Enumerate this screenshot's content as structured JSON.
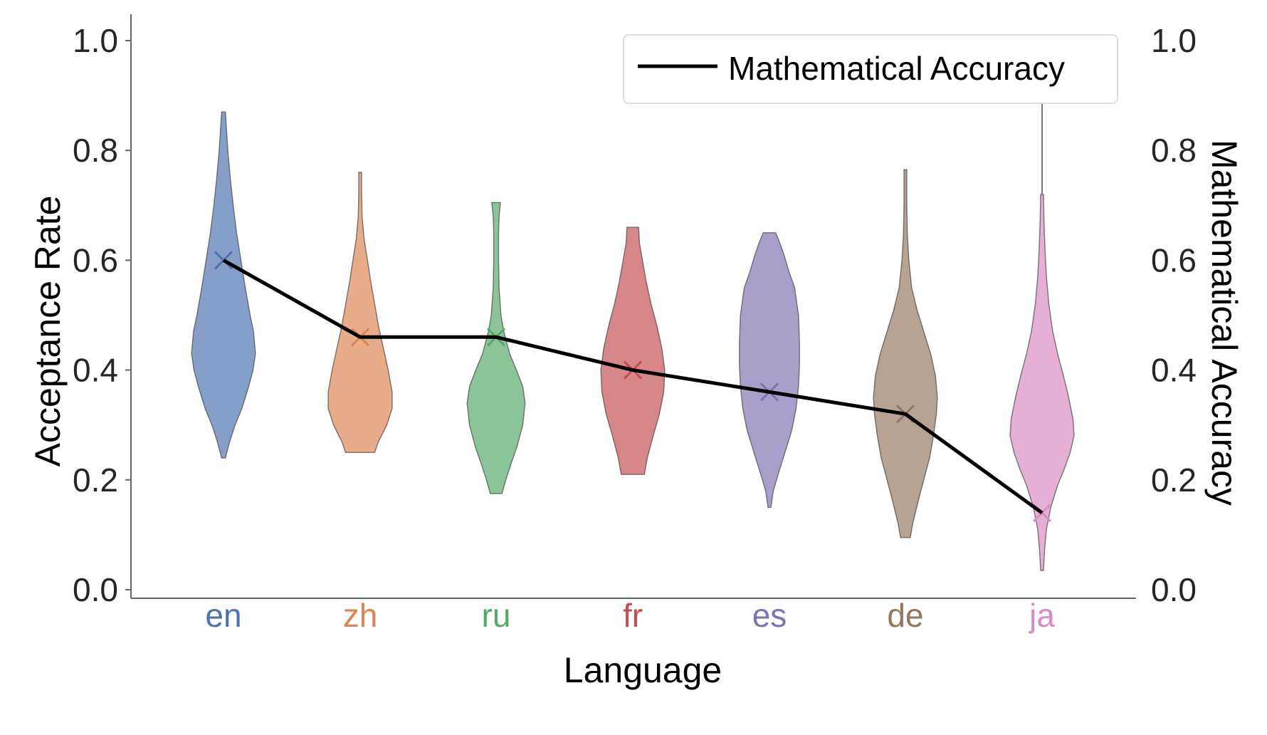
{
  "chart_data": {
    "type": "violin",
    "xlabel": "Language",
    "ylabel": "Acceptance Rate",
    "y2label": "Mathematical Accuracy",
    "categories": [
      "en",
      "zh",
      "ru",
      "fr",
      "es",
      "de",
      "ja"
    ],
    "category_colors": [
      "#4c72b0",
      "#dd8452",
      "#55a868",
      "#c44e52",
      "#8172b3",
      "#937860",
      "#da8bc3"
    ],
    "ylim": [
      0,
      1.0
    ],
    "y2lim": [
      0,
      1.0
    ],
    "yticks": [
      "0.0",
      "0.2",
      "0.4",
      "0.6",
      "0.8",
      "1.0"
    ],
    "y2ticks": [
      "0.0",
      "0.2",
      "0.4",
      "0.6",
      "0.8",
      "1.0"
    ],
    "grid": false,
    "legend": {
      "position": "top-right",
      "entries": [
        "Mathematical Accuracy"
      ]
    },
    "violins": [
      {
        "category": "en",
        "min": 0.24,
        "max": 0.87,
        "mean": 0.6,
        "profile": [
          [
            0.24,
            0.04
          ],
          [
            0.27,
            0.13
          ],
          [
            0.3,
            0.24
          ],
          [
            0.33,
            0.38
          ],
          [
            0.37,
            0.52
          ],
          [
            0.4,
            0.61
          ],
          [
            0.43,
            0.66
          ],
          [
            0.47,
            0.62
          ],
          [
            0.5,
            0.55
          ],
          [
            0.55,
            0.45
          ],
          [
            0.6,
            0.36
          ],
          [
            0.65,
            0.27
          ],
          [
            0.7,
            0.2
          ],
          [
            0.75,
            0.14
          ],
          [
            0.8,
            0.09
          ],
          [
            0.84,
            0.06
          ],
          [
            0.87,
            0.04
          ]
        ]
      },
      {
        "category": "zh",
        "min": 0.25,
        "max": 0.76,
        "mean": 0.46,
        "profile": [
          [
            0.25,
            0.3
          ],
          [
            0.27,
            0.38
          ],
          [
            0.3,
            0.55
          ],
          [
            0.33,
            0.66
          ],
          [
            0.36,
            0.66
          ],
          [
            0.4,
            0.58
          ],
          [
            0.44,
            0.48
          ],
          [
            0.48,
            0.38
          ],
          [
            0.52,
            0.3
          ],
          [
            0.56,
            0.22
          ],
          [
            0.6,
            0.15
          ],
          [
            0.64,
            0.08
          ],
          [
            0.68,
            0.04
          ],
          [
            0.72,
            0.03
          ],
          [
            0.76,
            0.03
          ]
        ]
      },
      {
        "category": "ru",
        "min": 0.175,
        "max": 0.705,
        "mean": 0.46,
        "profile": [
          [
            0.175,
            0.12
          ],
          [
            0.2,
            0.2
          ],
          [
            0.23,
            0.31
          ],
          [
            0.26,
            0.43
          ],
          [
            0.3,
            0.55
          ],
          [
            0.34,
            0.6
          ],
          [
            0.37,
            0.55
          ],
          [
            0.4,
            0.42
          ],
          [
            0.43,
            0.28
          ],
          [
            0.47,
            0.16
          ],
          [
            0.5,
            0.1
          ],
          [
            0.55,
            0.06
          ],
          [
            0.6,
            0.05
          ],
          [
            0.65,
            0.05
          ],
          [
            0.68,
            0.06
          ],
          [
            0.705,
            0.09
          ]
        ]
      },
      {
        "category": "fr",
        "min": 0.21,
        "max": 0.66,
        "mean": 0.4,
        "profile": [
          [
            0.21,
            0.24
          ],
          [
            0.24,
            0.3
          ],
          [
            0.28,
            0.42
          ],
          [
            0.32,
            0.55
          ],
          [
            0.36,
            0.64
          ],
          [
            0.4,
            0.66
          ],
          [
            0.44,
            0.6
          ],
          [
            0.48,
            0.5
          ],
          [
            0.52,
            0.38
          ],
          [
            0.56,
            0.28
          ],
          [
            0.6,
            0.2
          ],
          [
            0.63,
            0.14
          ],
          [
            0.66,
            0.12
          ]
        ]
      },
      {
        "category": "es",
        "min": 0.15,
        "max": 0.65,
        "mean": 0.36,
        "profile": [
          [
            0.15,
            0.03
          ],
          [
            0.18,
            0.08
          ],
          [
            0.21,
            0.18
          ],
          [
            0.25,
            0.32
          ],
          [
            0.29,
            0.46
          ],
          [
            0.33,
            0.55
          ],
          [
            0.37,
            0.6
          ],
          [
            0.41,
            0.62
          ],
          [
            0.45,
            0.62
          ],
          [
            0.5,
            0.6
          ],
          [
            0.55,
            0.52
          ],
          [
            0.58,
            0.4
          ],
          [
            0.61,
            0.3
          ],
          [
            0.63,
            0.22
          ],
          [
            0.65,
            0.13
          ]
        ]
      },
      {
        "category": "de",
        "min": 0.095,
        "max": 0.765,
        "mean": 0.32,
        "profile": [
          [
            0.095,
            0.1
          ],
          [
            0.12,
            0.15
          ],
          [
            0.16,
            0.26
          ],
          [
            0.2,
            0.38
          ],
          [
            0.24,
            0.5
          ],
          [
            0.28,
            0.58
          ],
          [
            0.32,
            0.64
          ],
          [
            0.35,
            0.66
          ],
          [
            0.39,
            0.62
          ],
          [
            0.43,
            0.52
          ],
          [
            0.47,
            0.38
          ],
          [
            0.51,
            0.24
          ],
          [
            0.55,
            0.13
          ],
          [
            0.6,
            0.07
          ],
          [
            0.65,
            0.04
          ],
          [
            0.7,
            0.03
          ],
          [
            0.765,
            0.03
          ]
        ]
      },
      {
        "category": "ja",
        "min": 0.035,
        "max": 0.72,
        "mean": 0.14,
        "profile": [
          [
            0.035,
            0.03
          ],
          [
            0.07,
            0.05
          ],
          [
            0.11,
            0.09
          ],
          [
            0.15,
            0.18
          ],
          [
            0.19,
            0.32
          ],
          [
            0.22,
            0.46
          ],
          [
            0.25,
            0.58
          ],
          [
            0.28,
            0.66
          ],
          [
            0.31,
            0.64
          ],
          [
            0.35,
            0.55
          ],
          [
            0.39,
            0.44
          ],
          [
            0.43,
            0.32
          ],
          [
            0.47,
            0.22
          ],
          [
            0.52,
            0.14
          ],
          [
            0.57,
            0.09
          ],
          [
            0.62,
            0.06
          ],
          [
            0.67,
            0.04
          ],
          [
            0.72,
            0.03
          ]
        ]
      }
    ],
    "series": [
      {
        "name": "Mathematical Accuracy",
        "axis": "right",
        "values": [
          0.6,
          0.46,
          0.46,
          0.4,
          0.36,
          0.32,
          0.14
        ]
      }
    ]
  }
}
